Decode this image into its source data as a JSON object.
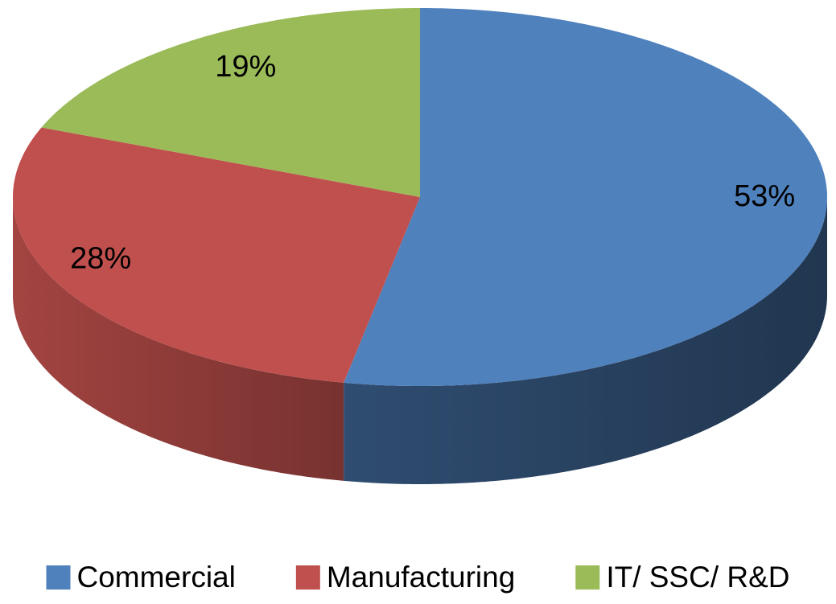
{
  "chart_data": {
    "type": "pie",
    "categories": [
      "Commercial",
      "Manufacturing",
      "IT/ SSC/ R&D"
    ],
    "values": [
      53,
      28,
      19
    ],
    "value_labels": [
      "53%",
      "28%",
      "19%"
    ],
    "colors": [
      "#4f81bd",
      "#c0504d",
      "#9bbb59"
    ],
    "legend": "bottom"
  }
}
